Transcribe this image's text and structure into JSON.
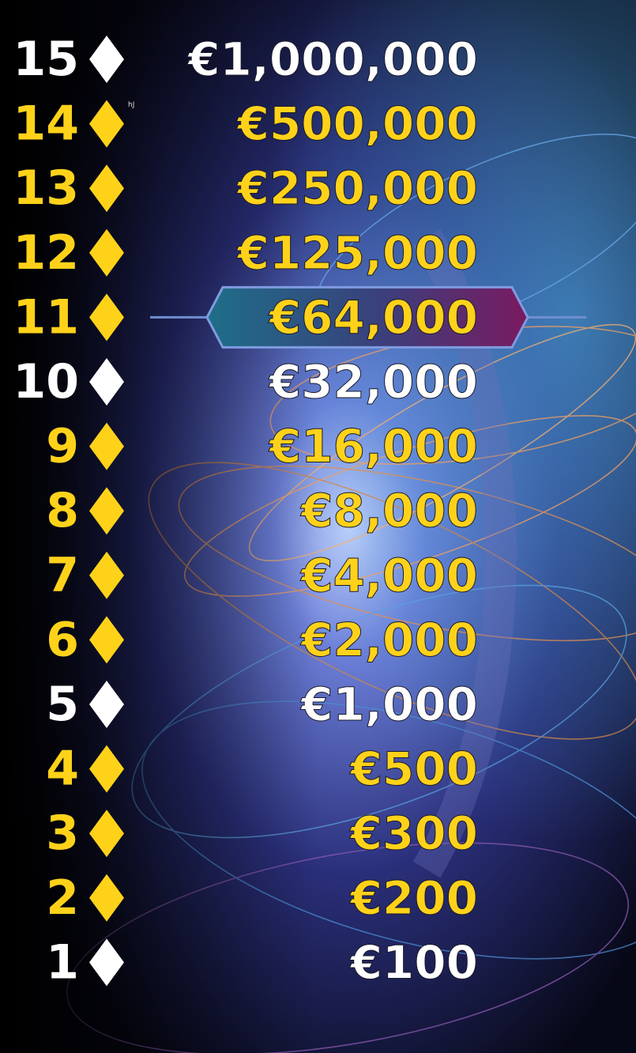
{
  "annotation": "hJ",
  "ladder": [
    {
      "level": 15,
      "prize": "€1,000,000",
      "color": "#ffffff"
    },
    {
      "level": 14,
      "prize": "€500,000",
      "color": "#ffd21a"
    },
    {
      "level": 13,
      "prize": "€250,000",
      "color": "#ffd21a"
    },
    {
      "level": 12,
      "prize": "€125,000",
      "color": "#ffd21a"
    },
    {
      "level": 11,
      "prize": "€64,000",
      "color": "#ffd21a",
      "highlighted": true
    },
    {
      "level": 10,
      "prize": "€32,000",
      "color": "#ffffff"
    },
    {
      "level": 9,
      "prize": "€16,000",
      "color": "#ffd21a"
    },
    {
      "level": 8,
      "prize": "€8,000",
      "color": "#ffd21a"
    },
    {
      "level": 7,
      "prize": "€4,000",
      "color": "#ffd21a"
    },
    {
      "level": 6,
      "prize": "€2,000",
      "color": "#ffd21a"
    },
    {
      "level": 5,
      "prize": "€1,000",
      "color": "#ffffff"
    },
    {
      "level": 4,
      "prize": "€500",
      "color": "#ffd21a"
    },
    {
      "level": 3,
      "prize": "€300",
      "color": "#ffd21a"
    },
    {
      "level": 2,
      "prize": "€200",
      "color": "#ffd21a"
    },
    {
      "level": 1,
      "prize": "€100",
      "color": "#ffffff"
    }
  ]
}
